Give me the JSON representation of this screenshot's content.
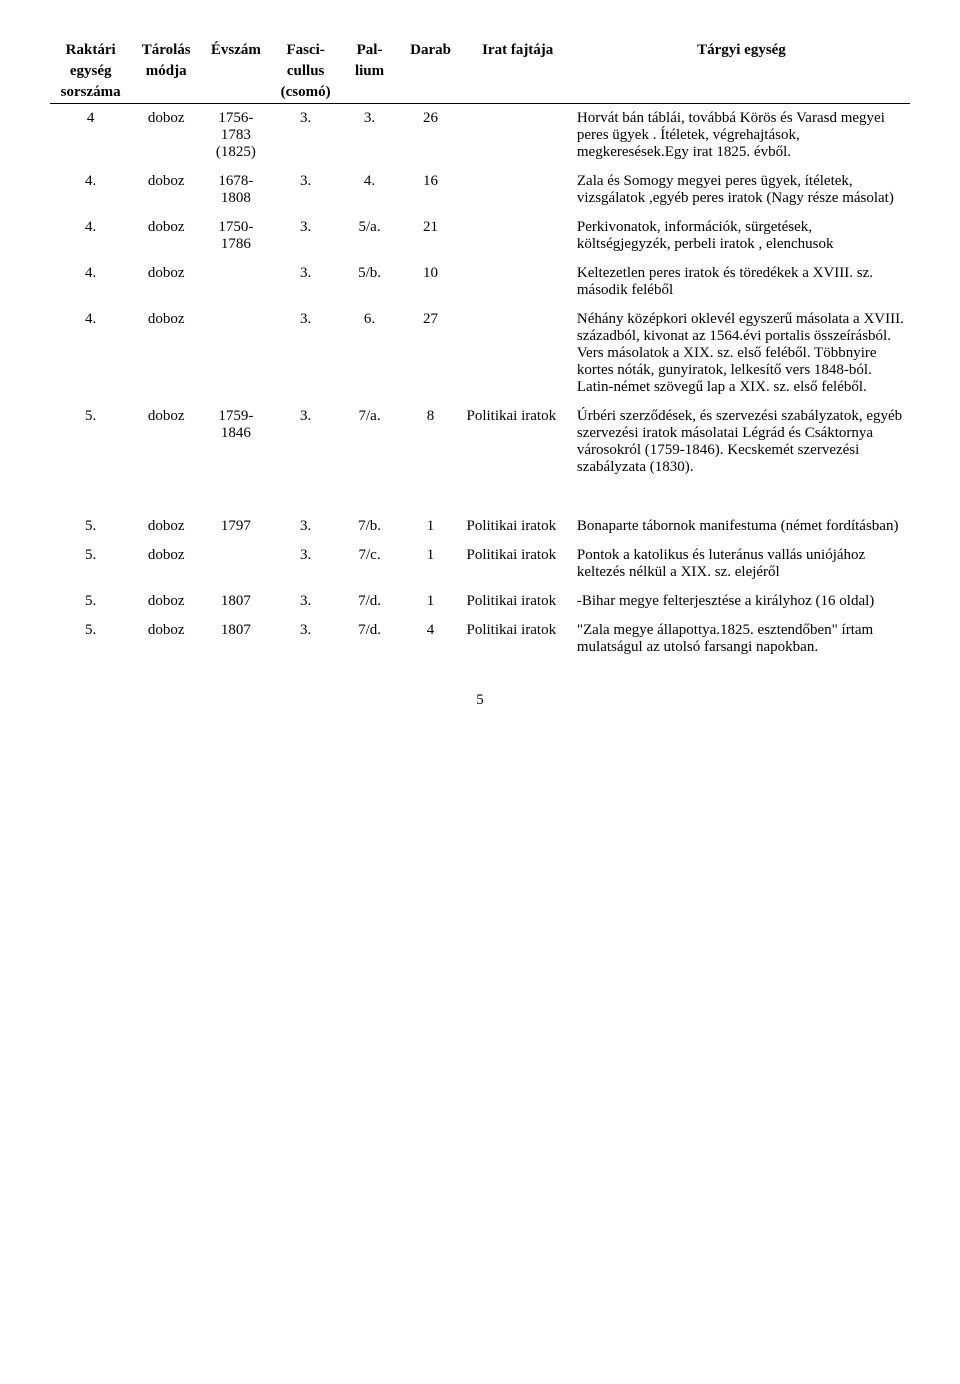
{
  "columns": {
    "widths": [
      70,
      60,
      60,
      60,
      50,
      55,
      95,
      290
    ],
    "headers": [
      [
        "Raktári",
        "egység",
        "sorszáma"
      ],
      [
        "Tárolás",
        "módja"
      ],
      [
        "Évszám"
      ],
      [
        "Fasci-",
        "cullus",
        "(csomó)"
      ],
      [
        "Pal-",
        "lium"
      ],
      [
        "Darab"
      ],
      [
        "Irat fajtája"
      ],
      [
        "Tárgyi egység"
      ]
    ]
  },
  "rows": [
    {
      "c0": "4",
      "c1": "doboz",
      "c2": "1756-\n1783\n(1825)",
      "c3": "3.",
      "c4": "3.",
      "c5": "26",
      "c6": "",
      "c7": "Horvát bán táblái, továbbá Körös és Varasd megyei peres ügyek . Ítéletek, végrehajtások, megkeresések.Egy irat 1825. évből."
    },
    {
      "c0": "4.",
      "c1": "doboz",
      "c2": "1678-\n1808",
      "c3": "3.",
      "c4": "4.",
      "c5": "16",
      "c6": "",
      "c7": "Zala és Somogy megyei peres ügyek, ítéletek, vizsgálatok ,egyéb peres iratok (Nagy része másolat)"
    },
    {
      "c0": "4.",
      "c1": "doboz",
      "c2": "1750-\n1786",
      "c3": "3.",
      "c4": "5/a.",
      "c5": "21",
      "c6": "",
      "c7": "Perkivonatok, információk, sürgetések, költségjegyzék, perbeli iratok , elenchusok"
    },
    {
      "c0": "4.",
      "c1": "doboz",
      "c2": "",
      "c3": "3.",
      "c4": "5/b.",
      "c5": "10",
      "c6": "",
      "c7": "Keltezetlen peres iratok és töredékek a XVIII. sz. második feléből"
    },
    {
      "c0": "4.",
      "c1": "doboz",
      "c2": "",
      "c3": "3.",
      "c4": "6.",
      "c5": "27",
      "c6": "",
      "c7": "Néhány középkori oklevél egyszerű másolata a XVIII. századból, kivonat az 1564.évi portalis összeírásból. Vers másolatok a XIX. sz. első feléből. Többnyire kortes nóták, gunyiratok, lelkesítő vers 1848-ból. Latin-német szövegű lap a XIX. sz. első feléből."
    },
    {
      "c0": "5.",
      "c1": "doboz",
      "c2": "1759-\n1846",
      "c3": "3.",
      "c4": "7/a.",
      "c5": "8",
      "c6": "Politikai iratok",
      "c7": "Úrbéri szerződések, és szervezési szabályzatok, egyéb szervezési iratok másolatai Légrád és Csáktornya városokról (1759-1846). Kecskemét szervezési szabályzata (1830)."
    },
    {
      "spacer": true
    },
    {
      "c0": "5.",
      "c1": "doboz",
      "c2": "1797",
      "c3": "3.",
      "c4": "7/b.",
      "c5": "1",
      "c6": "Politikai iratok",
      "c7": "Bonaparte tábornok manifestuma (német fordításban)"
    },
    {
      "c0": "5.",
      "c1": "doboz",
      "c2": "",
      "c3": "3.",
      "c4": "7/c.",
      "c5": "1",
      "c6": "Politikai iratok",
      "c7": "Pontok a katolikus és luteránus vallás uniójához keltezés nélkül a XIX. sz. elejéről"
    },
    {
      "c0": "5.",
      "c1": "doboz",
      "c2": "1807",
      "c3": "3.",
      "c4": "7/d.",
      "c5": "1",
      "c6": "Politikai iratok",
      "c7": "-Bihar megye felterjesztése a királyhoz (16 oldal)"
    },
    {
      "c0": "5.",
      "c1": "doboz",
      "c2": "1807",
      "c3": "3.",
      "c4": "7/d.",
      "c5": "4",
      "c6": "Politikai iratok",
      "c7": "\"Zala megye állapottya.1825. esztendőben\" írtam mulatságul az utolsó farsangi napokban."
    }
  ],
  "page_number": "5"
}
